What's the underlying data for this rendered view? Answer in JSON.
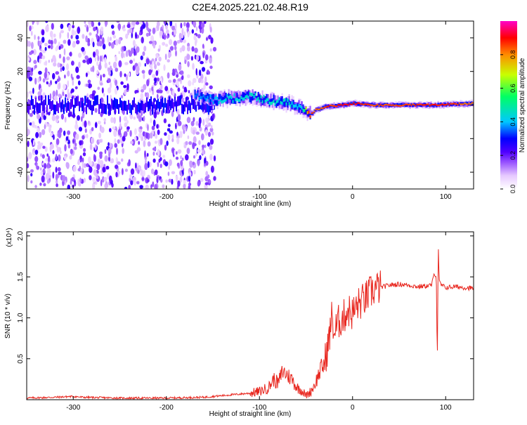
{
  "title": "C2E4.2025.221.02.48.R19",
  "chart_data": [
    {
      "type": "heatmap",
      "xlabel": "Height of straight line (km)",
      "ylabel": "Frequency (Hz)",
      "xlim": [
        -350,
        130
      ],
      "ylim": [
        -50,
        50
      ],
      "x_ticks": [
        -300,
        -200,
        -100,
        0,
        100
      ],
      "y_ticks": [
        -40,
        -20,
        0,
        20,
        40
      ],
      "x_tick_labels": [
        "-300",
        "-200",
        "-100",
        "0",
        "100"
      ],
      "y_tick_labels": [
        "-40",
        "-20",
        "0",
        "20",
        "40"
      ],
      "colorbar": {
        "label": "Normalized spectral amplitude",
        "range": [
          0.0,
          1.0
        ],
        "ticks": [
          0.0,
          0.2,
          0.4,
          0.6,
          0.8
        ],
        "tick_labels": [
          "0.0",
          "0.2",
          "0.4",
          "0.6",
          "0.8"
        ],
        "colormap": [
          "#ffffff",
          "#e6c8ff",
          "#9650ff",
          "#5000ff",
          "#0000ff",
          "#00c8ff",
          "#00ff64",
          "#c8ff00",
          "#ff8c00",
          "#ff0000",
          "#ff00c8"
        ]
      },
      "signal_track": {
        "x": [
          -170,
          -150,
          -130,
          -110,
          -90,
          -70,
          -55,
          -48,
          -44,
          -40,
          -30,
          -10,
          0,
          20,
          60,
          90,
          130
        ],
        "freq": [
          6,
          3,
          4,
          5,
          3,
          1,
          -2,
          -5,
          -5,
          -3,
          -1,
          0,
          1,
          0,
          0,
          0,
          1
        ],
        "amplitude": [
          0.35,
          0.4,
          0.45,
          0.45,
          0.45,
          0.45,
          0.4,
          0.85,
          0.85,
          0.8,
          0.85,
          0.9,
          0.9,
          0.85,
          0.85,
          0.9,
          0.8
        ]
      },
      "noise_region": {
        "x_from": -350,
        "x_to": -148
      }
    },
    {
      "type": "line",
      "xlabel": "Height of straight line (km)",
      "ylabel": "SNR (10 * v/v)",
      "y_multiplier": "(x10⁴)",
      "xlim": [
        -350,
        130
      ],
      "ylim": [
        0,
        2.05
      ],
      "x_ticks": [
        -300,
        -200,
        -100,
        0,
        100
      ],
      "y_ticks": [
        0.5,
        1.0,
        1.5,
        2.0
      ],
      "x_tick_labels": [
        "-300",
        "-200",
        "-100",
        "0",
        "100"
      ],
      "y_tick_labels": [
        "0.5",
        "1.0",
        "1.5",
        "2.0"
      ],
      "color": "#e8261e",
      "series": [
        {
          "x": [
            -350,
            -320,
            -300,
            -290,
            -250,
            -200,
            -160,
            -150,
            -130,
            -110,
            -100,
            -90,
            -85,
            -80,
            -75,
            -70,
            -65,
            -60,
            -55,
            -50,
            -45,
            -40,
            -35,
            -30,
            -25,
            -22,
            -20,
            -15,
            -10,
            -5,
            0,
            5,
            10,
            15,
            20,
            25,
            30,
            40,
            50,
            60,
            70,
            80,
            85,
            88,
            90,
            91,
            92,
            93,
            95,
            100,
            110,
            120,
            130
          ],
          "y": [
            0.02,
            0.03,
            0.04,
            0.03,
            0.02,
            0.02,
            0.03,
            0.04,
            0.06,
            0.08,
            0.1,
            0.15,
            0.25,
            0.2,
            0.35,
            0.3,
            0.25,
            0.15,
            0.12,
            0.05,
            0.1,
            0.2,
            0.35,
            0.45,
            0.75,
            1.05,
            0.8,
            0.95,
            1.0,
            1.1,
            1.05,
            1.15,
            1.2,
            1.25,
            1.32,
            1.36,
            1.37,
            1.4,
            1.41,
            1.4,
            1.38,
            1.39,
            1.4,
            1.55,
            1.5,
            0.4,
            1.9,
            1.45,
            1.4,
            1.37,
            1.38,
            1.37,
            1.36
          ]
        }
      ]
    }
  ]
}
